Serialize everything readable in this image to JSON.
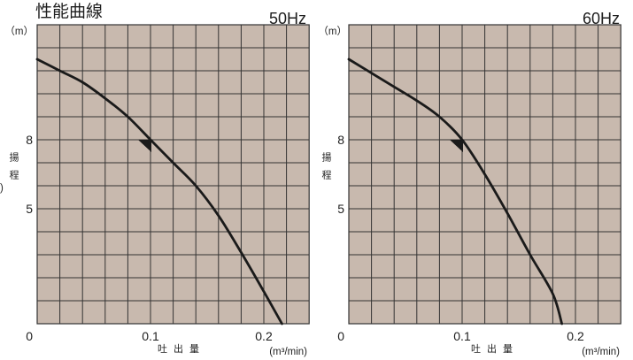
{
  "page_title": "性能曲線",
  "colors": {
    "page_background": "#ffffff",
    "plot_background": "#c8b9ae",
    "grid": "#333333",
    "curve": "#1a1a1a",
    "text": "#1e1e1e"
  },
  "chart_data": [
    {
      "type": "line",
      "title": "50Hz",
      "xlabel": "吐出量",
      "xlabel_unit": "(m³/min)",
      "ylabel": "揚程",
      "ylabel_unit": "（m）",
      "ylabel_fragment": ")",
      "xlim": [
        0,
        0.24
      ],
      "ylim": [
        0,
        13
      ],
      "grid": true,
      "grid_step": {
        "x": 0.02,
        "y": 1
      },
      "x_ticks": [
        {
          "value": 0,
          "label": "0"
        },
        {
          "value": 0.1,
          "label": "0.1"
        },
        {
          "value": 0.2,
          "label": "0.2"
        }
      ],
      "y_ticks": [
        {
          "value": 8,
          "label": "8"
        },
        {
          "value": 5,
          "label": "5"
        }
      ],
      "series": [
        {
          "x": [
            0,
            0.02,
            0.04,
            0.06,
            0.08,
            0.1,
            0.12,
            0.14,
            0.16,
            0.18,
            0.2,
            0.216
          ],
          "y": [
            11.5,
            11.0,
            10.5,
            9.8,
            9.0,
            8.0,
            7.0,
            6.0,
            4.7,
            3.1,
            1.4,
            0
          ]
        }
      ],
      "rated_point": {
        "x": 0.1,
        "y": 8
      }
    },
    {
      "type": "line",
      "title": "60Hz",
      "xlabel": "吐出量",
      "xlabel_unit": "(m³/min)",
      "ylabel": "揚程",
      "ylabel_unit": "（m）",
      "xlim": [
        0,
        0.24
      ],
      "ylim": [
        0,
        13
      ],
      "grid": true,
      "grid_step": {
        "x": 0.02,
        "y": 1
      },
      "x_ticks": [
        {
          "value": 0,
          "label": "0"
        },
        {
          "value": 0.1,
          "label": "0.1"
        },
        {
          "value": 0.2,
          "label": "0.2"
        }
      ],
      "y_ticks": [
        {
          "value": 8,
          "label": "8"
        },
        {
          "value": 5,
          "label": "5"
        }
      ],
      "series": [
        {
          "x": [
            0,
            0.02,
            0.04,
            0.06,
            0.08,
            0.1,
            0.12,
            0.14,
            0.16,
            0.18,
            0.188
          ],
          "y": [
            11.5,
            10.9,
            10.3,
            9.7,
            9.0,
            8.0,
            6.5,
            4.8,
            3.0,
            1.3,
            0
          ]
        }
      ],
      "rated_point": {
        "x": 0.1,
        "y": 8
      }
    }
  ]
}
